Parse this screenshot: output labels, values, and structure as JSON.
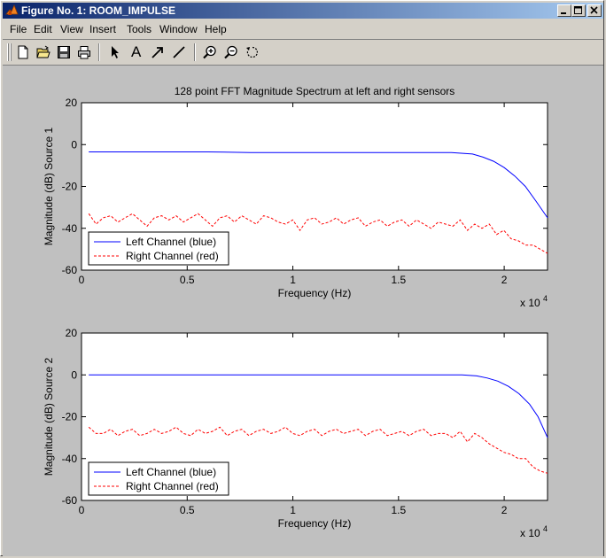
{
  "window": {
    "title": "Figure No. 1: ROOM_IMPULSE",
    "icon": "matlab-logo-icon",
    "controls": [
      "minimize-icon",
      "maximize-icon",
      "close-icon"
    ]
  },
  "menu": [
    "File",
    "Edit",
    "View",
    "Insert",
    "Tools",
    "Window",
    "Help"
  ],
  "toolbar": [
    {
      "name": "new-figure-icon"
    },
    {
      "name": "open-file-icon"
    },
    {
      "name": "save-icon"
    },
    {
      "name": "print-icon"
    },
    {
      "name": "arrow-select-icon"
    },
    {
      "name": "insert-text-icon",
      "glyph": "A"
    },
    {
      "name": "insert-arrow-icon"
    },
    {
      "name": "insert-line-icon"
    },
    {
      "name": "zoom-in-icon"
    },
    {
      "name": "zoom-out-icon"
    },
    {
      "name": "rotate-3d-icon"
    }
  ],
  "chart_data": [
    {
      "type": "line",
      "title": "128 point FFT Magnitude Spectrum at left and right sensors",
      "xlabel": "Frequency (Hz)",
      "ylabel": "Magnitude (dB) Source 1",
      "x_multiplier_label": "x 10",
      "x_multiplier_exponent": "4",
      "xlim": [
        0,
        22050
      ],
      "ylim": [
        -60,
        20
      ],
      "xticks": [
        0,
        5000,
        10000,
        15000,
        20000
      ],
      "xticklabels": [
        "0",
        "0.5",
        "1",
        "1.5",
        "2"
      ],
      "yticks": [
        20,
        0,
        -20,
        -40,
        -60
      ],
      "yticklabels": [
        "20",
        "0",
        "-20",
        "-40",
        "-60"
      ],
      "grid": false,
      "legend_position": "bottom-left",
      "series": [
        {
          "name": "Left Channel (blue)",
          "color": "#0000ff",
          "style": "solid",
          "x": [
            344,
            2000,
            4000,
            6000,
            8000,
            10000,
            12000,
            14000,
            16000,
            17500,
            18500,
            19000,
            19500,
            20000,
            20500,
            21000,
            21500,
            22050
          ],
          "y": [
            -3.5,
            -3.5,
            -3.5,
            -3.5,
            -3.8,
            -3.8,
            -3.8,
            -3.8,
            -3.8,
            -3.8,
            -4.5,
            -6.0,
            -8.0,
            -11.0,
            -15.0,
            -20.0,
            -27.0,
            -35.0
          ]
        },
        {
          "name": "Right Channel (red)",
          "color": "#ff0000",
          "style": "dashed",
          "x": [
            344,
            689,
            1033,
            1378,
            1723,
            2067,
            2412,
            2756,
            3101,
            3445,
            3790,
            4134,
            4479,
            4823,
            5168,
            5513,
            5857,
            6202,
            6546,
            6891,
            7235,
            7580,
            7924,
            8269,
            8613,
            8958,
            9303,
            9647,
            9992,
            10336,
            10681,
            11025,
            11370,
            11714,
            12059,
            12403,
            12748,
            13093,
            13437,
            13782,
            14126,
            14471,
            14815,
            15160,
            15504,
            15849,
            16193,
            16538,
            16883,
            17227,
            17572,
            17916,
            18261,
            18605,
            18950,
            19294,
            19639,
            19983,
            20328,
            20672,
            21017,
            21361,
            21706,
            22050
          ],
          "y": [
            -33,
            -38,
            -35,
            -34,
            -37,
            -35,
            -33,
            -36,
            -39,
            -35,
            -34,
            -36,
            -34,
            -37,
            -35,
            -33,
            -36,
            -39,
            -35,
            -34,
            -37,
            -34,
            -36,
            -38,
            -34,
            -35,
            -37,
            -38,
            -36,
            -41,
            -36,
            -35,
            -38,
            -37,
            -35,
            -38,
            -36,
            -35,
            -39,
            -37,
            -36,
            -39,
            -37,
            -36,
            -39,
            -36,
            -38,
            -40,
            -37,
            -38,
            -39,
            -36,
            -41,
            -38,
            -40,
            -38,
            -43,
            -41,
            -45,
            -46,
            -48,
            -48,
            -50,
            -52
          ]
        }
      ]
    },
    {
      "type": "line",
      "title": "",
      "xlabel": "Frequency (Hz)",
      "ylabel": "Magnitude (dB) Source 2",
      "x_multiplier_label": "x 10",
      "x_multiplier_exponent": "4",
      "xlim": [
        0,
        22050
      ],
      "ylim": [
        -60,
        20
      ],
      "xticks": [
        0,
        5000,
        10000,
        15000,
        20000
      ],
      "xticklabels": [
        "0",
        "0.5",
        "1",
        "1.5",
        "2"
      ],
      "yticks": [
        20,
        0,
        -20,
        -40,
        -60
      ],
      "yticklabels": [
        "20",
        "0",
        "-20",
        "-40",
        "-60"
      ],
      "grid": false,
      "legend_position": "bottom-left",
      "series": [
        {
          "name": "Left Channel (blue)",
          "color": "#0000ff",
          "style": "solid",
          "x": [
            344,
            2000,
            4000,
            6000,
            8000,
            10000,
            12000,
            14000,
            16000,
            18000,
            18700,
            19200,
            19700,
            20200,
            20700,
            21200,
            21600,
            22050
          ],
          "y": [
            0,
            0,
            0,
            0,
            0,
            0,
            0,
            0,
            0,
            0,
            -0.5,
            -1.5,
            -3.0,
            -5.5,
            -9.0,
            -14.0,
            -20.0,
            -30.0
          ]
        },
        {
          "name": "Right Channel (red)",
          "color": "#ff0000",
          "style": "dashed",
          "x": [
            344,
            689,
            1033,
            1378,
            1723,
            2067,
            2412,
            2756,
            3101,
            3445,
            3790,
            4134,
            4479,
            4823,
            5168,
            5513,
            5857,
            6202,
            6546,
            6891,
            7235,
            7580,
            7924,
            8269,
            8613,
            8958,
            9303,
            9647,
            9992,
            10336,
            10681,
            11025,
            11370,
            11714,
            12059,
            12403,
            12748,
            13093,
            13437,
            13782,
            14126,
            14471,
            14815,
            15160,
            15504,
            15849,
            16193,
            16538,
            16883,
            17227,
            17572,
            17916,
            18261,
            18605,
            18950,
            19294,
            19639,
            19983,
            20328,
            20672,
            21017,
            21361,
            21706,
            22050
          ],
          "y": [
            -25,
            -28,
            -28,
            -26,
            -29,
            -27,
            -26,
            -29,
            -28,
            -26,
            -28,
            -27,
            -25,
            -28,
            -29,
            -26,
            -28,
            -27,
            -25,
            -29,
            -27,
            -26,
            -29,
            -27,
            -26,
            -28,
            -27,
            -25,
            -28,
            -29,
            -27,
            -26,
            -29,
            -27,
            -26,
            -28,
            -27,
            -26,
            -29,
            -27,
            -26,
            -29,
            -28,
            -27,
            -29,
            -27,
            -26,
            -29,
            -28,
            -28,
            -30,
            -27,
            -32,
            -28,
            -30,
            -33,
            -35,
            -37,
            -38,
            -40,
            -40,
            -44,
            -46,
            -47
          ]
        }
      ]
    }
  ]
}
